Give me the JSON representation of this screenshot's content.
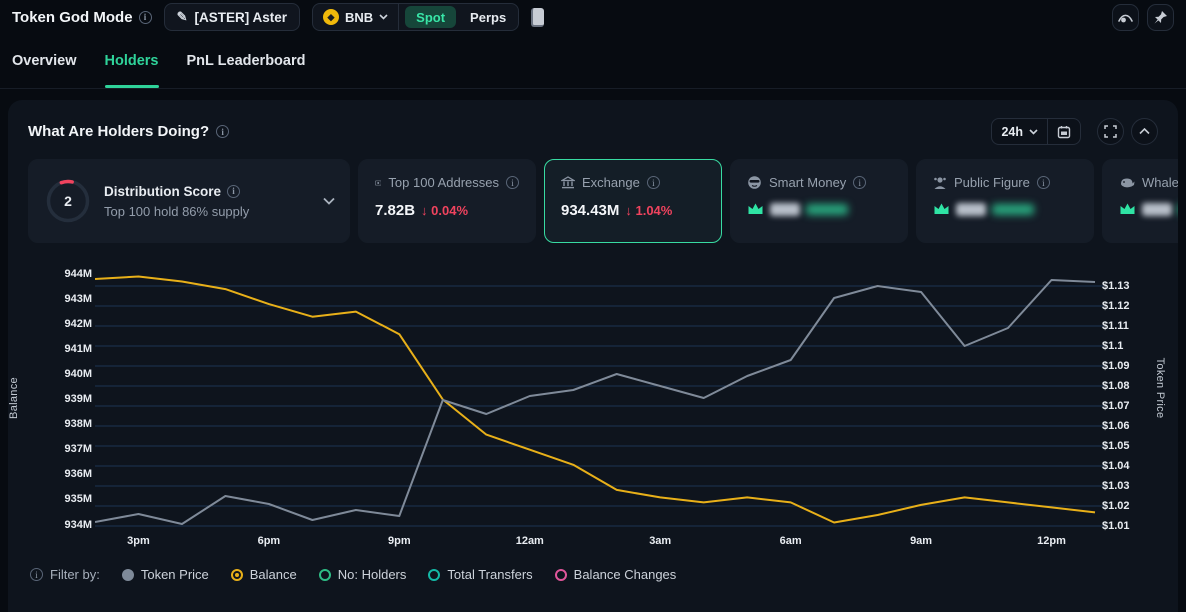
{
  "topbar": {
    "title": "Token God Mode",
    "token_selector": "[ASTER] Aster",
    "chain": "BNB",
    "spot": "Spot",
    "perps": "Perps"
  },
  "tabs": [
    {
      "label": "Overview",
      "active": false
    },
    {
      "label": "Holders",
      "active": true
    },
    {
      "label": "PnL Leaderboard",
      "active": false
    }
  ],
  "panel": {
    "title": "What Are Holders Doing?",
    "timeframe": "24h"
  },
  "cards": {
    "distribution": {
      "score": "2",
      "title": "Distribution Score",
      "subtitle": "Top 100 hold 86% supply"
    },
    "metrics": [
      {
        "label": "Top 100 Addresses",
        "value": "7.82B",
        "change": "↓ 0.04%",
        "direction": "down",
        "selected": false,
        "masked": false
      },
      {
        "label": "Exchange",
        "value": "934.43M",
        "change": "↓ 1.04%",
        "direction": "down",
        "selected": true,
        "masked": false
      },
      {
        "label": "Smart Money",
        "selected": false,
        "masked": true
      },
      {
        "label": "Public Figure",
        "selected": false,
        "masked": true
      },
      {
        "label": "Whale",
        "selected": false,
        "masked": true
      }
    ]
  },
  "chart_data": {
    "type": "line",
    "x": [
      "2pm",
      "3pm",
      "4pm",
      "5pm",
      "6pm",
      "7pm",
      "8pm",
      "9pm",
      "10pm",
      "11pm",
      "12am",
      "1am",
      "2am",
      "3am",
      "4am",
      "5am",
      "6am",
      "7am",
      "8am",
      "9am",
      "10am",
      "11am",
      "12pm",
      "1pm"
    ],
    "x_ticks": [
      {
        "index": 1,
        "label": "3pm"
      },
      {
        "index": 4,
        "label": "6pm"
      },
      {
        "index": 7,
        "label": "9pm"
      },
      {
        "index": 10,
        "label": "12am"
      },
      {
        "index": 13,
        "label": "3am"
      },
      {
        "index": 16,
        "label": "6am"
      },
      {
        "index": 19,
        "label": "9am"
      },
      {
        "index": 22,
        "label": "12pm"
      }
    ],
    "series": [
      {
        "name": "Balance",
        "axis": "left",
        "color": "#e8b019",
        "values": [
          943.8,
          943.9,
          943.7,
          943.4,
          942.8,
          942.3,
          942.5,
          941.6,
          939.0,
          937.6,
          937.0,
          936.4,
          935.4,
          935.1,
          934.9,
          935.1,
          934.9,
          934.1,
          934.4,
          934.8,
          935.1,
          934.9,
          934.7,
          934.5
        ]
      },
      {
        "name": "Token Price",
        "axis": "right",
        "color": "#7f8a99",
        "values": [
          1.012,
          1.016,
          1.011,
          1.025,
          1.021,
          1.013,
          1.018,
          1.015,
          1.073,
          1.066,
          1.075,
          1.078,
          1.086,
          1.08,
          1.074,
          1.085,
          1.093,
          1.124,
          1.13,
          1.127,
          1.1,
          1.109,
          1.133,
          1.132
        ]
      }
    ],
    "left_axis": {
      "label": "Balance",
      "min": 934,
      "max": 944,
      "ticks": [
        "944M",
        "943M",
        "942M",
        "941M",
        "940M",
        "939M",
        "938M",
        "937M",
        "936M",
        "935M",
        "934M"
      ]
    },
    "right_axis": {
      "label": "Token Price",
      "min": 1.01,
      "max": 1.13,
      "ticks": [
        "$1.13",
        "$1.12",
        "$1.11",
        "$1.1",
        "$1.09",
        "$1.08",
        "$1.07",
        "$1.06",
        "$1.05",
        "$1.04",
        "$1.03",
        "$1.02",
        "$1.01"
      ]
    },
    "grid": true,
    "legend": "none"
  },
  "filters": {
    "label": "Filter by:",
    "options": [
      {
        "label": "Token Price",
        "style": "filled",
        "color": "#7e8a99",
        "selected": false
      },
      {
        "label": "Balance",
        "style": "radio-selected",
        "color": "#e8b019",
        "selected": true
      },
      {
        "label": "No: Holders",
        "style": "ring",
        "color": "#2ebd85",
        "selected": false
      },
      {
        "label": "Total Transfers",
        "style": "ring",
        "color": "#14b8a6",
        "selected": false
      },
      {
        "label": "Balance Changes",
        "style": "ring",
        "color": "#e0569a",
        "selected": false
      }
    ]
  },
  "colors": {
    "accent_green": "#2fd39a",
    "negative_red": "#f0435e",
    "balance_line": "#e8b019",
    "price_line": "#7f8a99",
    "panel_bg": "#0e141d",
    "card_bg": "#151c27",
    "selected_border": "#38dba2",
    "score_arc": "#f0435e"
  }
}
